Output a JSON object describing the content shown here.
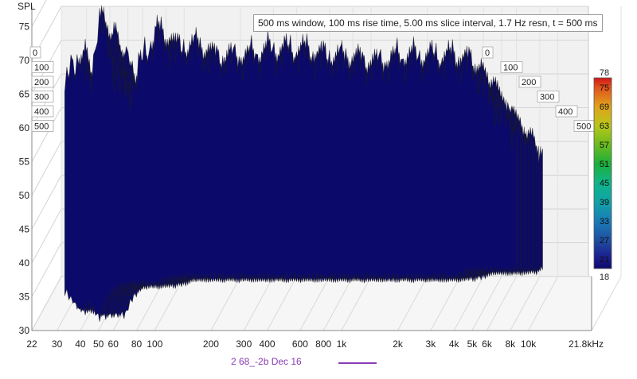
{
  "chart_data": {
    "type": "area",
    "subtype": "waterfall-3d",
    "title": "500 ms window, 100 ms rise time, 5.00 ms slice interval, 1.7 Hz resn, t = 500 ms",
    "ylabel": "SPL",
    "xlabel": "",
    "x_unit": "Hz",
    "x_scale": "log",
    "xlim": [
      22,
      21800
    ],
    "x_ticks": [
      "22",
      "30",
      "40",
      "50",
      "60",
      "80",
      "100",
      "200",
      "300",
      "400",
      "600",
      "800",
      "1k",
      "2k",
      "3k",
      "4k",
      "5k",
      "6k",
      "8k",
      "10k",
      "21.8kHz"
    ],
    "x_tick_values": [
      22,
      30,
      40,
      50,
      60,
      80,
      100,
      200,
      300,
      400,
      600,
      800,
      1000,
      2000,
      3000,
      4000,
      5000,
      6000,
      8000,
      10000,
      21800
    ],
    "ylim": [
      30,
      78
    ],
    "y_ticks": [
      "30",
      "35",
      "40",
      "45",
      "50",
      "55",
      "60",
      "65",
      "70",
      "75"
    ],
    "y_tick_values": [
      30,
      35,
      40,
      45,
      50,
      55,
      60,
      65,
      70,
      75
    ],
    "time_axis_unit": "ms",
    "time_ticks_left": [
      "0",
      "100",
      "200",
      "300",
      "400",
      "500"
    ],
    "time_ticks_right": [
      "0",
      "100",
      "200",
      "300",
      "400",
      "500"
    ],
    "time_tick_values": [
      0,
      100,
      200,
      300,
      400,
      500
    ],
    "colorbar": {
      "labels": [
        "78",
        "75",
        "69",
        "63",
        "57",
        "51",
        "45",
        "39",
        "33",
        "27",
        "21",
        "18"
      ],
      "values": [
        78,
        75,
        69,
        63,
        57,
        51,
        45,
        39,
        33,
        27,
        21,
        18
      ],
      "min": 18,
      "max": 78
    },
    "grid": true,
    "legend_position": "bottom",
    "series": [
      {
        "name": "2 68_-2b Dec 16",
        "color": "#8a3db8",
        "x": [
          22,
          30,
          35,
          40,
          45,
          50,
          55,
          60,
          70,
          80,
          90,
          100,
          130,
          160,
          200,
          250,
          300,
          400,
          500,
          600,
          800,
          1000,
          1500,
          2000,
          3000,
          4000,
          5000,
          6000,
          8000
        ],
        "peak_spl": [
          53,
          61,
          68,
          71,
          65,
          77,
          72,
          69,
          64,
          68,
          71,
          74,
          71,
          72,
          70,
          70,
          70,
          71,
          71,
          71,
          70,
          70,
          69,
          70,
          70,
          70,
          69,
          65,
          60
        ],
        "floor_spl": [
          37,
          37,
          34,
          32,
          33,
          31,
          34,
          35,
          36,
          36,
          36,
          36,
          37,
          37,
          37,
          37,
          37,
          37,
          37,
          37,
          37,
          37,
          37,
          37,
          37,
          37,
          38,
          38,
          38
        ]
      }
    ]
  },
  "legend": {
    "label": "2 68_-2b Dec 16",
    "color": "#8a3db8"
  }
}
